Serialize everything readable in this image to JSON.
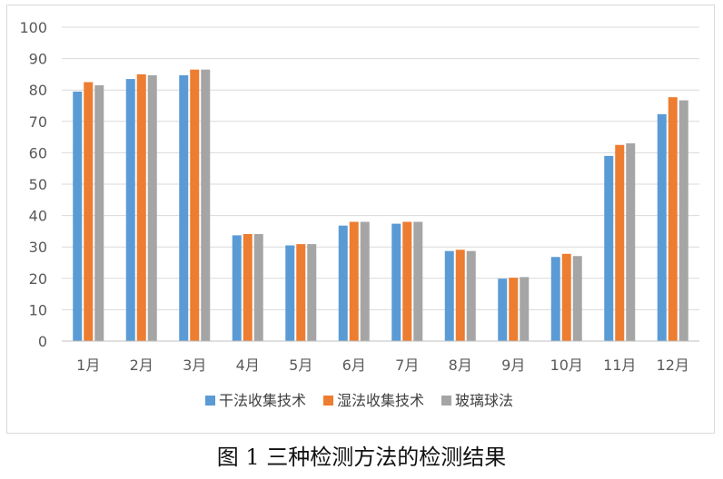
{
  "caption": "图 1 三种检测方法的检测结果",
  "chart_data": {
    "type": "bar",
    "title": "",
    "xlabel": "",
    "ylabel": "",
    "ylim": [
      0,
      100
    ],
    "yticks": [
      0,
      10,
      20,
      30,
      40,
      50,
      60,
      70,
      80,
      90,
      100
    ],
    "grid": true,
    "legend_position": "bottom",
    "categories": [
      "1月",
      "2月",
      "3月",
      "4月",
      "5月",
      "6月",
      "7月",
      "8月",
      "9月",
      "10月",
      "11月",
      "12月"
    ],
    "series": [
      {
        "name": "干法收集技术",
        "color": "#5b9bd5",
        "values": [
          79.5,
          83.5,
          84.7,
          33.7,
          30.5,
          36.8,
          37.4,
          28.7,
          19.9,
          26.8,
          59.0,
          72.3
        ]
      },
      {
        "name": "湿法收集技术",
        "color": "#ed7d31",
        "values": [
          82.5,
          85.0,
          86.5,
          34.1,
          30.9,
          38.0,
          38.0,
          29.1,
          20.2,
          27.8,
          62.5,
          77.7
        ]
      },
      {
        "name": "玻璃球法",
        "color": "#a5a5a5",
        "values": [
          81.5,
          84.7,
          86.5,
          34.1,
          30.9,
          38.0,
          38.0,
          28.7,
          20.4,
          27.1,
          63.0,
          76.7
        ]
      }
    ]
  }
}
